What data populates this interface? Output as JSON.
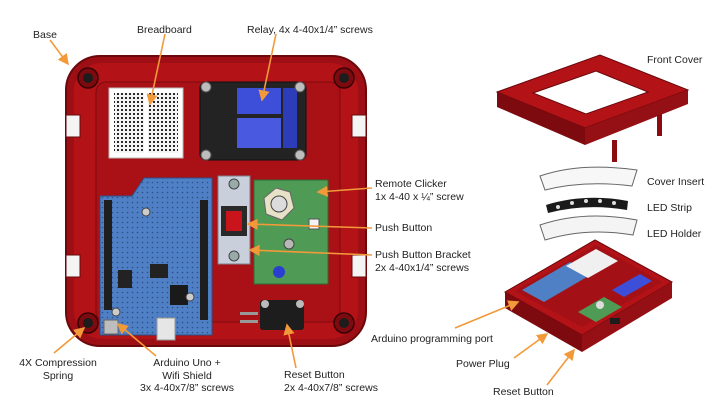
{
  "labels": {
    "base": "Base",
    "breadboard": "Breadboard",
    "relay": "Relay, 4x 4-40x1/4” screws",
    "front_cover": "Front Cover",
    "remote_clicker_1": "Remote Clicker",
    "remote_clicker_2": "1x 4-40 x ¼” screw",
    "cover_insert": "Cover Insert",
    "push_button": "Push Button",
    "led_strip": "LED Strip",
    "led_holder": "LED Holder",
    "push_button_bracket_1": "Push Button Bracket",
    "push_button_bracket_2": "2x 4-40x1/4” screws",
    "compression_spring_1": "4X Compression",
    "compression_spring_2": "Spring",
    "arduino_1": "Arduino Uno +",
    "arduino_2": "Wifi Shield",
    "arduino_3": "3x 4-40x7/8” screws",
    "reset_button_left_1": "Reset Button",
    "reset_button_left_2": "2x 4-40x7/8” screws",
    "arduino_port": "Arduino programming port",
    "power_plug": "Power Plug",
    "reset_button_right": "Reset Button"
  },
  "colors": {
    "enclosure": "#b31217",
    "enclosure_dark": "#7d0a0e",
    "arrow": "#f29a3a",
    "board_blue": "#4f7fc4",
    "board_green": "#4f9a55",
    "relay_blue": "#3d4fd8"
  }
}
